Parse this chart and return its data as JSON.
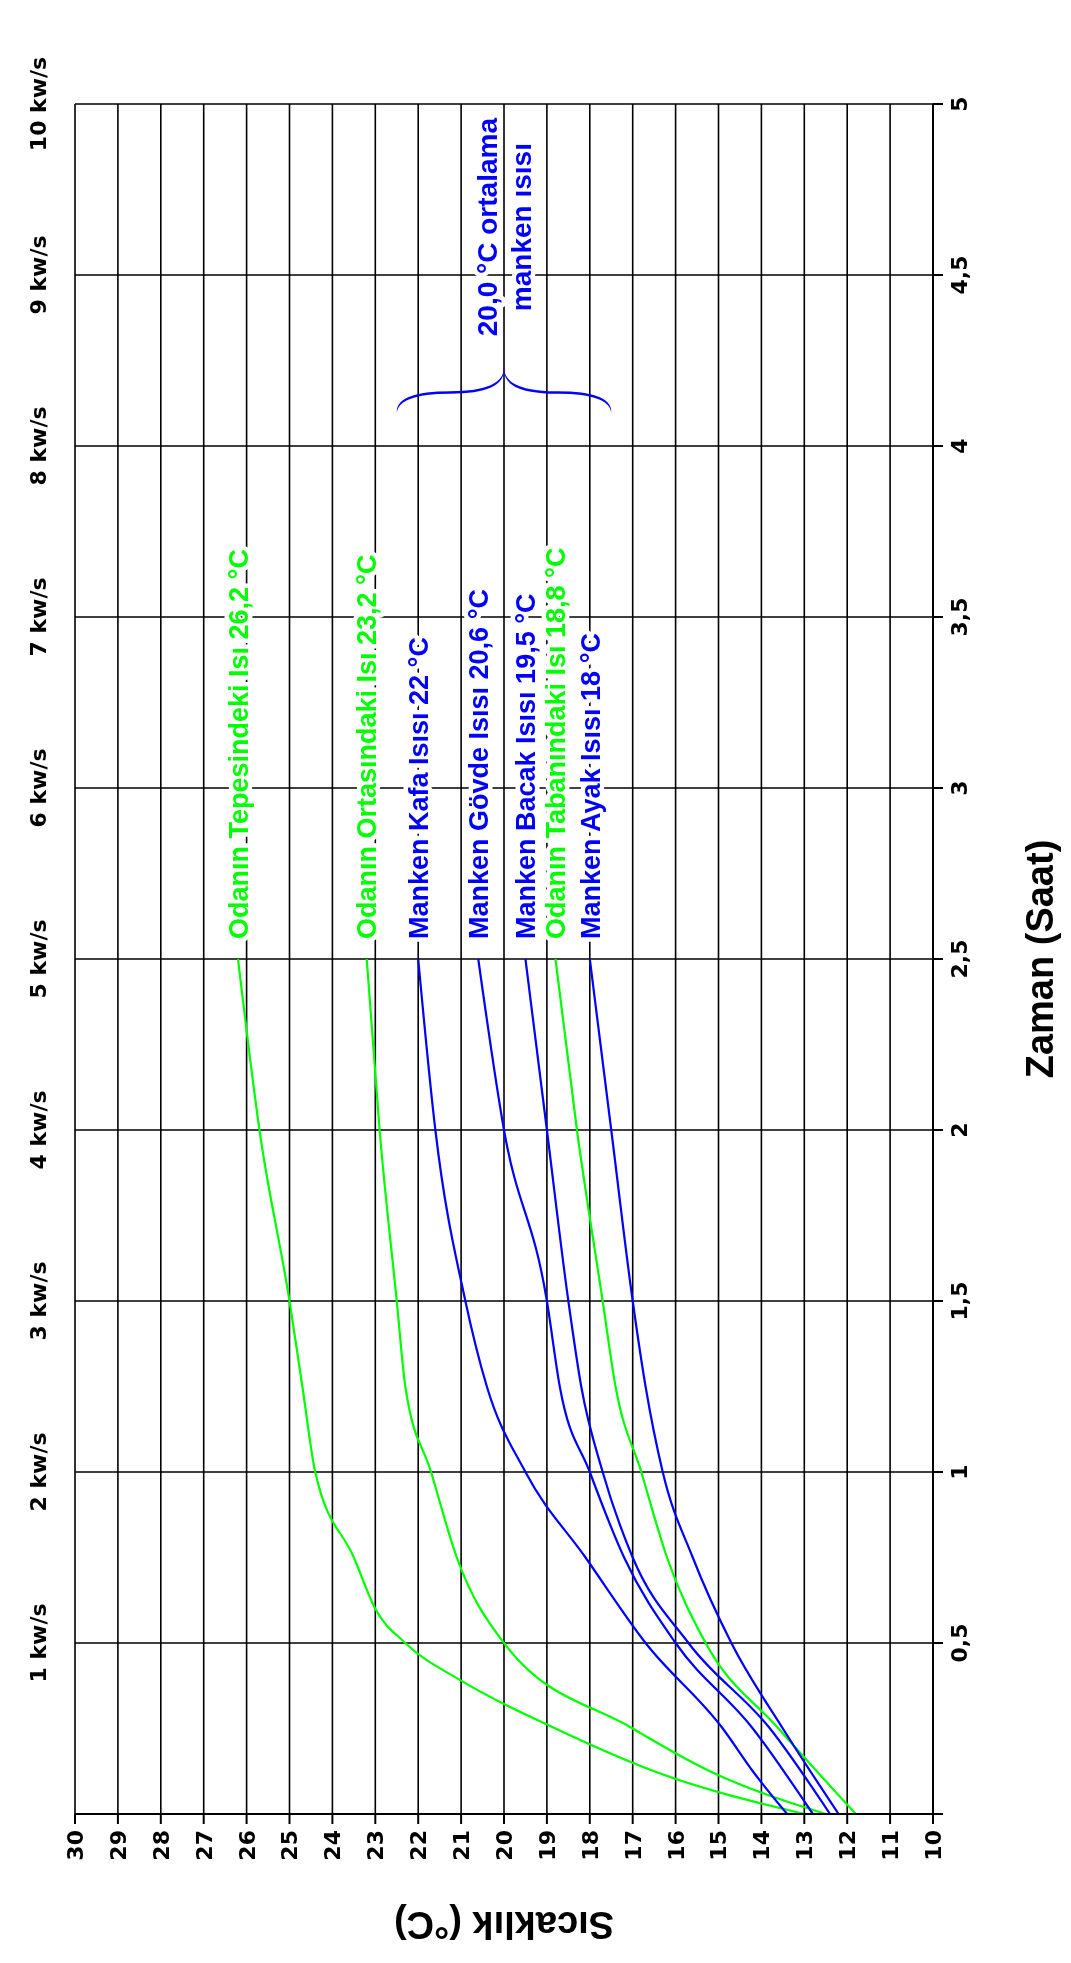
{
  "chart_data": {
    "type": "line",
    "xlabel": "Sıcaklık (°C)",
    "ylabel": "Zaman (Saat)",
    "xlim": [
      30,
      10
    ],
    "xticks": [
      30,
      29,
      28,
      27,
      26,
      25,
      24,
      23,
      22,
      21,
      20,
      19,
      18,
      17,
      16,
      15,
      14,
      13,
      12,
      11,
      10
    ],
    "ylim": [
      0,
      5
    ],
    "yticks": [
      {
        "value": 0,
        "label": null
      },
      {
        "value": 0.5,
        "label": "0,5"
      },
      1,
      {
        "value": 1.5,
        "label": "1,5"
      },
      2,
      {
        "value": 2.5,
        "label": "2,5"
      },
      3,
      {
        "value": 3.5,
        "label": "3,5"
      },
      4,
      {
        "value": 4.5,
        "label": "4,5"
      },
      5
    ],
    "y2lim": [
      0,
      10
    ],
    "y2ticks": [
      {
        "value": 1,
        "label": "1 kw/s"
      },
      {
        "value": 2,
        "label": "2 kw/s"
      },
      {
        "value": 3,
        "label": "3 kw/s"
      },
      {
        "value": 4,
        "label": "4 kw/s"
      },
      {
        "value": 5,
        "label": "5 kw/s"
      },
      {
        "value": 6,
        "label": "6 kw/s"
      },
      {
        "value": 7,
        "label": "7 kw/s"
      },
      {
        "value": 8,
        "label": "8 kw/s"
      },
      {
        "value": 9,
        "label": "9 kw/s"
      },
      {
        "value": 10,
        "label": "10 kw/s"
      }
    ],
    "grid": true,
    "marker": "none",
    "series": [
      {
        "name": "Odanın Tepesindeki Isı 26,2 °C",
        "color": "#00ff00",
        "x": [
          13.0,
          16.5,
          18.8,
          21.0,
          22.3,
          23.0,
          23.5,
          24.4,
          24.7,
          25.0,
          25.7,
          26.2
        ],
        "values": [
          0,
          0.125,
          0.25,
          0.39,
          0.5,
          0.6,
          0.75,
          1,
          1.25,
          1.5,
          2,
          2.5
        ]
      },
      {
        "name": "Odanın Ortasındaki Isı 23,2 °C",
        "color": "#00ff00",
        "x": [
          12.5,
          15.2,
          17.0,
          20.0,
          21.1,
          21.7,
          22.3,
          22.5,
          22.9,
          23.2
        ],
        "values": [
          0,
          0.125,
          0.25,
          0.5,
          0.75,
          1,
          1.25,
          1.5,
          2,
          2.5
        ]
      },
      {
        "name": "Manken Kafa Isısı 22 °C",
        "color": "#0000ff",
        "x": [
          13.4,
          14.2,
          14.9,
          16.7,
          18.1,
          19.5,
          20.4,
          20.9,
          21.6,
          22.0
        ],
        "values": [
          0,
          0.125,
          0.25,
          0.5,
          0.75,
          1,
          1.25,
          1.5,
          2,
          2.5
        ]
      },
      {
        "name": "Manken Gövde Isısı 20,6 °C",
        "color": "#0000ff",
        "x": [
          12.8,
          14.2,
          16.0,
          17.2,
          18.0,
          18.7,
          19.0,
          20.0,
          20.6
        ],
        "values": [
          0,
          0.25,
          0.5,
          0.75,
          1,
          1.25,
          1.5,
          2,
          2.5
        ]
      },
      {
        "name": "Manken Bacak Isısı 19,5 °C",
        "color": "#0000ff",
        "x": [
          12.4,
          13.8,
          15.7,
          17.0,
          17.7,
          18.2,
          18.5,
          19.0,
          19.5
        ],
        "values": [
          0,
          0.25,
          0.5,
          0.75,
          1,
          1.25,
          1.5,
          2,
          2.5
        ]
      },
      {
        "name": "Odanın Tabanındaki Isı 18,8 °C",
        "color": "#00ff00",
        "x": [
          11.8,
          13.6,
          15.3,
          16.2,
          16.8,
          17.4,
          17.7,
          18.3,
          18.8
        ],
        "values": [
          0,
          0.25,
          0.5,
          0.75,
          1,
          1.25,
          1.5,
          2,
          2.5
        ]
      },
      {
        "name": "Manken Ayak Isısı 18 °C",
        "color": "#0000ff",
        "x": [
          12.2,
          13.5,
          14.7,
          15.6,
          16.3,
          16.7,
          17.0,
          17.5,
          18.0
        ],
        "values": [
          0,
          0.25,
          0.5,
          0.75,
          1,
          1.25,
          1.5,
          2,
          2.5
        ]
      }
    ],
    "annotations": [
      "20,0 °C ortalama\nmanken ısısı"
    ]
  }
}
